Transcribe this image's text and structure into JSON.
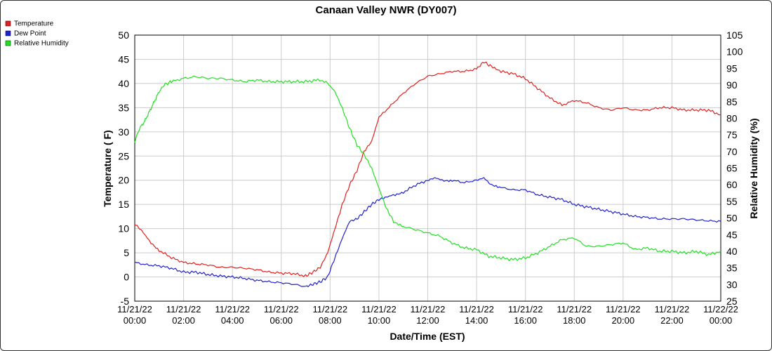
{
  "chart_data": {
    "type": "line",
    "title": "Canaan Valley NWR (DY007)",
    "xlabel": "Date/Time (EST)",
    "ylabel_left": "Temperature ( F)",
    "ylabel_right": "Relative Humidity (%)",
    "ylim_left": [
      -5,
      50
    ],
    "ylim_right": [
      25,
      105
    ],
    "yticks_left": [
      "-5",
      "0",
      "5",
      "10",
      "15",
      "20",
      "25",
      "30",
      "35",
      "40",
      "45",
      "50"
    ],
    "yticks_right": [
      "25",
      "30",
      "35",
      "40",
      "45",
      "50",
      "55",
      "60",
      "65",
      "70",
      "75",
      "80",
      "85",
      "90",
      "95",
      "100",
      "105"
    ],
    "x_hours": [
      0,
      2,
      4,
      6,
      8,
      10,
      12,
      14,
      16,
      18,
      20,
      22,
      24
    ],
    "xtick_labels": [
      [
        "11/21/22",
        "00:00"
      ],
      [
        "11/21/22",
        "02:00"
      ],
      [
        "11/21/22",
        "04:00"
      ],
      [
        "11/21/22",
        "06:00"
      ],
      [
        "11/21/22",
        "08:00"
      ],
      [
        "11/21/22",
        "10:00"
      ],
      [
        "11/21/22",
        "12:00"
      ],
      [
        "11/21/22",
        "14:00"
      ],
      [
        "11/21/22",
        "16:00"
      ],
      [
        "11/21/22",
        "18:00"
      ],
      [
        "11/21/22",
        "20:00"
      ],
      [
        "11/21/22",
        "22:00"
      ],
      [
        "11/22/22",
        "00:00"
      ]
    ],
    "grid": true,
    "legend_position": "top-left",
    "series": [
      {
        "name": "Temperature",
        "color": "#e02020",
        "axis": "left",
        "x": [
          0,
          0.3,
          0.6,
          1.0,
          1.5,
          2.0,
          2.5,
          3.0,
          3.5,
          4.0,
          4.5,
          5.0,
          5.5,
          6.0,
          6.5,
          7.0,
          7.3,
          7.6,
          7.9,
          8.2,
          8.5,
          8.8,
          9.1,
          9.4,
          9.7,
          10.0,
          10.5,
          11.0,
          11.5,
          12.0,
          12.5,
          13.0,
          13.5,
          14.0,
          14.3,
          14.6,
          15.0,
          15.5,
          16.0,
          16.5,
          17.0,
          17.5,
          18.0,
          18.5,
          19.0,
          19.5,
          20.0,
          20.5,
          21.0,
          21.5,
          22.0,
          22.5,
          23.0,
          23.5,
          24.0
        ],
        "values": [
          11,
          9.5,
          7.5,
          5.5,
          4,
          3,
          2.7,
          2.5,
          2,
          2,
          1.8,
          1.5,
          1,
          0.8,
          0.7,
          0.2,
          1,
          2,
          5,
          10,
          15,
          19,
          22,
          26,
          28,
          33,
          35.5,
          38,
          40,
          41.5,
          42,
          42.5,
          42.5,
          43,
          44.5,
          43.5,
          42.5,
          42,
          41,
          39,
          37,
          35.5,
          36.5,
          36,
          35,
          34.5,
          35,
          34.5,
          34.5,
          35,
          35,
          34.5,
          34.5,
          34.5,
          33.5
        ]
      },
      {
        "name": "Dew Point",
        "color": "#2020d0",
        "axis": "left",
        "x": [
          0,
          0.5,
          1.0,
          1.5,
          2.0,
          2.5,
          3.0,
          3.5,
          4.0,
          4.5,
          5.0,
          5.5,
          6.0,
          6.5,
          7.0,
          7.3,
          7.6,
          7.9,
          8.2,
          8.5,
          8.8,
          9.1,
          9.4,
          9.7,
          10.0,
          10.3,
          10.6,
          11.0,
          11.5,
          12.0,
          12.3,
          12.6,
          13.0,
          13.5,
          14.0,
          14.3,
          14.6,
          15.0,
          15.5,
          16.0,
          16.5,
          17.0,
          17.5,
          18.0,
          18.5,
          19.0,
          19.5,
          20.0,
          20.5,
          21.0,
          21.5,
          22.0,
          22.5,
          23.0,
          23.5,
          24.0
        ],
        "values": [
          3,
          2.5,
          2.3,
          1.8,
          1,
          1,
          0.5,
          0.2,
          0,
          -0.3,
          -0.7,
          -1,
          -1.2,
          -1.5,
          -2,
          -1.5,
          -1,
          0,
          4,
          8,
          11.5,
          12,
          13.5,
          15,
          16,
          16.5,
          17,
          17.5,
          19,
          20,
          20.5,
          20,
          20,
          19.5,
          20,
          20.5,
          19,
          18.5,
          18,
          18,
          17,
          16.5,
          16,
          15,
          14.5,
          14,
          13.5,
          13,
          12.5,
          12.3,
          12,
          12,
          12,
          11.8,
          11.6,
          11.5
        ]
      },
      {
        "name": "Relative Humidity",
        "color": "#22e022",
        "axis": "right",
        "x": [
          0,
          0.2,
          0.4,
          0.6,
          0.8,
          1.0,
          1.2,
          1.5,
          2.0,
          2.5,
          3.0,
          3.5,
          4.0,
          4.5,
          5.0,
          5.5,
          6.0,
          6.5,
          7.0,
          7.5,
          7.9,
          8.2,
          8.5,
          8.8,
          9.1,
          9.4,
          9.7,
          10.0,
          10.3,
          10.6,
          11.0,
          11.5,
          12.0,
          12.5,
          13.0,
          13.5,
          14.0,
          14.5,
          15.0,
          15.5,
          16.0,
          16.5,
          17.0,
          17.5,
          18.0,
          18.5,
          19.0,
          19.5,
          20.0,
          20.5,
          21.0,
          21.5,
          22.0,
          22.5,
          23.0,
          23.5,
          24.0
        ],
        "values": [
          73,
          77,
          79,
          82,
          85,
          88,
          90,
          91,
          92,
          92.5,
          92,
          92,
          91.5,
          91,
          91.5,
          91,
          91,
          91,
          91,
          91.5,
          90.5,
          88,
          83,
          77,
          72,
          69,
          65,
          59,
          53,
          49,
          47.5,
          46.5,
          45.5,
          44.5,
          42.5,
          41,
          40.5,
          38.5,
          38,
          37.5,
          38,
          39.5,
          41.5,
          43.5,
          44,
          41.5,
          41.5,
          42,
          42.5,
          40.5,
          41,
          40,
          40,
          39.5,
          40,
          39,
          40
        ]
      }
    ]
  }
}
